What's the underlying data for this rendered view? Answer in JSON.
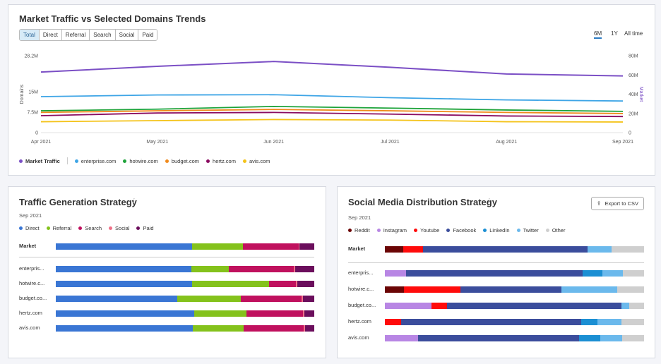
{
  "top": {
    "title": "Market Traffic vs Selected Domains Trends",
    "segments": [
      "Total",
      "Direct",
      "Referral",
      "Search",
      "Social",
      "Paid"
    ],
    "active_segment": "Total",
    "time_ranges": [
      "6M",
      "1Y",
      "All time"
    ],
    "active_time_range": "6M",
    "left_axis_label": "Domains",
    "right_axis_label": "Market",
    "left_ticks": [
      "28.2M",
      "15M",
      "7.5M",
      "0"
    ],
    "right_ticks": [
      "80M",
      "60M",
      "40M",
      "20M",
      "0"
    ],
    "legend": [
      {
        "name": "Market Traffic",
        "color": "#7b4fc5",
        "bold": true
      },
      {
        "name": "enterprise.com",
        "color": "#3ea5e6"
      },
      {
        "name": "hotwire.com",
        "color": "#1ea33a"
      },
      {
        "name": "budget.com",
        "color": "#f08a1c"
      },
      {
        "name": "hertz.com",
        "color": "#8a0b60"
      },
      {
        "name": "avis.com",
        "color": "#f4c31a"
      }
    ]
  },
  "chart_data": {
    "type": "line",
    "x": [
      "Apr 2021",
      "May 2021",
      "Jun 2021",
      "Jul 2021",
      "Aug 2021",
      "Sep 2021"
    ],
    "left_axis": {
      "label": "Domains",
      "ylim": [
        0,
        28.2
      ],
      "unit": "M"
    },
    "right_axis": {
      "label": "Market",
      "ylim": [
        0,
        80
      ],
      "unit": "M"
    },
    "series": [
      {
        "name": "Market Traffic",
        "axis": "right",
        "color": "#7b4fc5",
        "values": [
          63,
          69,
          74,
          68,
          61,
          59
        ]
      },
      {
        "name": "enterprise.com",
        "axis": "left",
        "color": "#3ea5e6",
        "values": [
          13.2,
          13.8,
          13.9,
          12.8,
          12.0,
          11.6
        ]
      },
      {
        "name": "hotwire.com",
        "axis": "left",
        "color": "#1ea33a",
        "values": [
          8.0,
          8.6,
          9.6,
          9.0,
          8.3,
          7.8
        ]
      },
      {
        "name": "budget.com",
        "axis": "left",
        "color": "#f08a1c",
        "values": [
          7.4,
          8.0,
          8.5,
          8.0,
          7.4,
          7.0
        ]
      },
      {
        "name": "hertz.com",
        "axis": "left",
        "color": "#8a0b60",
        "values": [
          6.2,
          7.2,
          7.4,
          6.8,
          6.1,
          5.9
        ]
      },
      {
        "name": "avis.com",
        "axis": "left",
        "color": "#f4c31a",
        "values": [
          4.0,
          4.4,
          4.8,
          4.6,
          4.0,
          3.9
        ]
      }
    ]
  },
  "traffic": {
    "title": "Traffic Generation Strategy",
    "date": "Sep 2021",
    "legend": [
      {
        "name": "Direct",
        "color": "#3a76d4"
      },
      {
        "name": "Referral",
        "color": "#84c21c"
      },
      {
        "name": "Search",
        "color": "#c0115e"
      },
      {
        "name": "Social",
        "color": "#ef7188"
      },
      {
        "name": "Paid",
        "color": "#6b0e5c"
      }
    ],
    "rows": [
      {
        "label": "Market",
        "values": [
          52.7,
          19.6,
          21.6,
          0.5,
          5.6
        ]
      },
      {
        "label": "enterpris...",
        "values": [
          52.5,
          14.4,
          25.1,
          0.5,
          7.5
        ]
      },
      {
        "label": "hotwire.c...",
        "values": [
          52.6,
          29.8,
          10.6,
          0.5,
          6.5
        ]
      },
      {
        "label": "budget.co...",
        "values": [
          47.1,
          24.6,
          23.4,
          0.5,
          4.4
        ]
      },
      {
        "label": "hertz.com",
        "values": [
          53.5,
          20.3,
          21.8,
          0.5,
          3.9
        ]
      },
      {
        "label": "avis.com",
        "values": [
          52.9,
          19.9,
          23.2,
          0.5,
          3.5
        ]
      }
    ]
  },
  "social": {
    "title": "Social Media Distribution Strategy",
    "date": "Sep 2021",
    "export_label": "Export to CSV",
    "legend": [
      {
        "name": "Reddit",
        "color": "#6b0505"
      },
      {
        "name": "Instagram",
        "color": "#b886e4"
      },
      {
        "name": "Youtube",
        "color": "#ff0b0b"
      },
      {
        "name": "Facebook",
        "color": "#3b4d9c"
      },
      {
        "name": "LinkedIn",
        "color": "#1b8fd3"
      },
      {
        "name": "Twitter",
        "color": "#6bb9ec"
      },
      {
        "name": "Other",
        "color": "#cfcfcf"
      }
    ],
    "rows": [
      {
        "label": "Market",
        "values": [
          7.2,
          0,
          7.6,
          63.3,
          0,
          9.5,
          12.4
        ]
      },
      {
        "label": "enterpris...",
        "values": [
          0,
          8.1,
          0,
          68.2,
          7.6,
          7.9,
          8.2
        ]
      },
      {
        "label": "hotwire.c...",
        "values": [
          7.4,
          0,
          21.8,
          38.9,
          0,
          21.5,
          10.4
        ]
      },
      {
        "label": "budget.co...",
        "values": [
          0,
          17.9,
          6.1,
          67.3,
          0,
          3.0,
          5.7
        ]
      },
      {
        "label": "hertz.com",
        "values": [
          0,
          0,
          6.3,
          69.4,
          6.3,
          9.2,
          8.8
        ]
      },
      {
        "label": "avis.com",
        "values": [
          0,
          12.8,
          0,
          62.1,
          8.2,
          8.4,
          8.5
        ]
      }
    ]
  }
}
